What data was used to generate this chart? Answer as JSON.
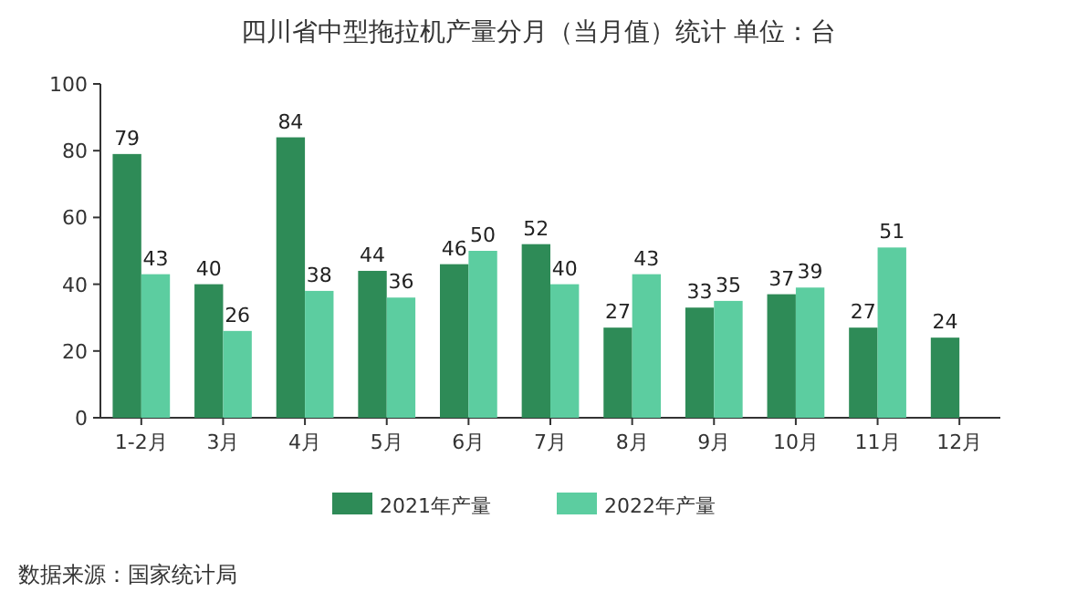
{
  "chart_data": {
    "type": "bar",
    "title": "四川省中型拖拉机产量分月（当月值）统计  单位：台",
    "categories": [
      "1-2月",
      "3月",
      "4月",
      "5月",
      "6月",
      "7月",
      "8月",
      "9月",
      "10月",
      "11月",
      "12月"
    ],
    "series": [
      {
        "name": "2021年产量",
        "color": "#2e8b57",
        "values": [
          79,
          40,
          84,
          44,
          46,
          52,
          27,
          33,
          37,
          27,
          24
        ]
      },
      {
        "name": "2022年产量",
        "color": "#5ccda0",
        "values": [
          43,
          26,
          38,
          36,
          50,
          40,
          43,
          35,
          39,
          51,
          null
        ]
      }
    ],
    "ylim": [
      0,
      100
    ],
    "yticks": [
      0,
      20,
      40,
      60,
      80,
      100
    ],
    "data_labels": true,
    "legend": "bottom",
    "annotations": [
      "数据来源：国家统计局"
    ]
  }
}
